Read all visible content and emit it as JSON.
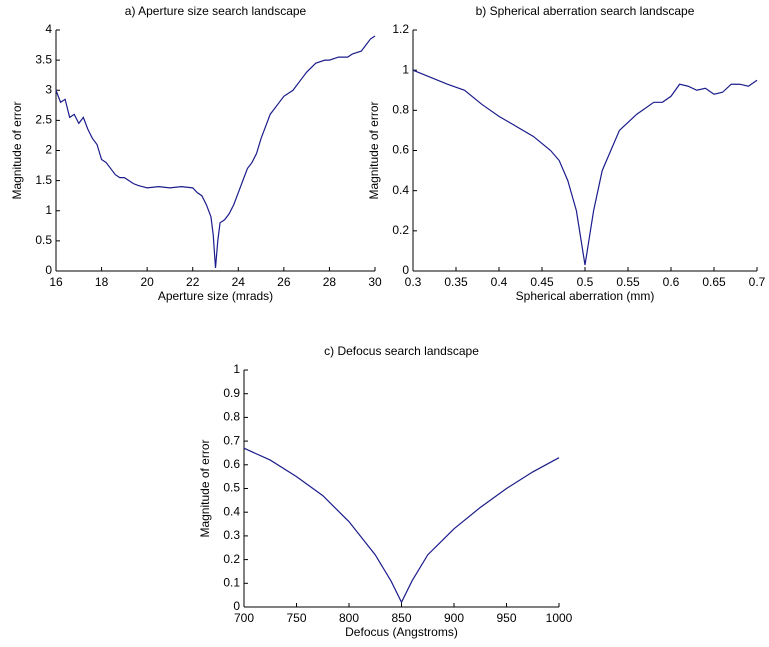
{
  "chart_data": [
    {
      "type": "line",
      "title": "a) Aperture size search landscape",
      "xlabel": "Aperture size (mrads)",
      "ylabel": "Magnitude of error",
      "color": "#1c1c8c",
      "x": [
        16,
        16.2,
        16.4,
        16.6,
        16.8,
        17,
        17.2,
        17.4,
        17.6,
        17.8,
        18,
        18.2,
        18.4,
        18.6,
        18.8,
        19,
        19.2,
        19.4,
        19.6,
        19.8,
        20,
        20.5,
        21,
        21.5,
        22,
        22.2,
        22.4,
        22.6,
        22.8,
        22.9,
        23,
        23.1,
        23.2,
        23.4,
        23.6,
        23.8,
        24,
        24.2,
        24.4,
        24.6,
        24.8,
        25,
        25.4,
        25.8,
        26,
        26.4,
        26.8,
        27,
        27.4,
        27.8,
        28,
        28.4,
        28.8,
        29,
        29.4,
        29.8,
        30
      ],
      "values": [
        3.0,
        2.8,
        2.85,
        2.55,
        2.6,
        2.45,
        2.55,
        2.35,
        2.2,
        2.1,
        1.85,
        1.8,
        1.7,
        1.6,
        1.55,
        1.55,
        1.5,
        1.45,
        1.42,
        1.4,
        1.38,
        1.4,
        1.38,
        1.4,
        1.38,
        1.3,
        1.25,
        1.1,
        0.9,
        0.6,
        0.05,
        0.5,
        0.8,
        0.85,
        0.95,
        1.1,
        1.3,
        1.5,
        1.7,
        1.8,
        1.95,
        2.2,
        2.6,
        2.8,
        2.9,
        3.0,
        3.2,
        3.3,
        3.45,
        3.5,
        3.5,
        3.55,
        3.55,
        3.6,
        3.65,
        3.85,
        3.9
      ],
      "xlim": [
        16,
        30
      ],
      "xticks": [
        16,
        18,
        20,
        22,
        24,
        26,
        28,
        30
      ],
      "ylim": [
        0,
        4
      ],
      "yticks": [
        0,
        0.5,
        1,
        1.5,
        2,
        2.5,
        3,
        3.5,
        4
      ]
    },
    {
      "type": "line",
      "title": "b) Spherical aberration search landscape",
      "xlabel": "Spherical aberration (mm)",
      "ylabel": "Magnitude of error",
      "color": "#1c1c8c",
      "x": [
        0.3,
        0.34,
        0.36,
        0.38,
        0.4,
        0.42,
        0.44,
        0.46,
        0.47,
        0.48,
        0.49,
        0.5,
        0.51,
        0.52,
        0.53,
        0.54,
        0.56,
        0.58,
        0.59,
        0.6,
        0.61,
        0.62,
        0.63,
        0.64,
        0.65,
        0.66,
        0.67,
        0.68,
        0.69,
        0.7
      ],
      "values": [
        1.0,
        0.93,
        0.9,
        0.83,
        0.77,
        0.72,
        0.67,
        0.6,
        0.55,
        0.45,
        0.3,
        0.03,
        0.3,
        0.5,
        0.6,
        0.7,
        0.78,
        0.84,
        0.84,
        0.87,
        0.93,
        0.92,
        0.9,
        0.91,
        0.88,
        0.89,
        0.93,
        0.93,
        0.92,
        0.95
      ],
      "xlim": [
        0.3,
        0.7
      ],
      "xticks": [
        0.3,
        0.35,
        0.4,
        0.45,
        0.5,
        0.55,
        0.6,
        0.65,
        0.7
      ],
      "ylim": [
        0,
        1.2
      ],
      "yticks": [
        0,
        0.2,
        0.4,
        0.6,
        0.8,
        1,
        1.2
      ]
    },
    {
      "type": "line",
      "title": "c) Defocus search landscape",
      "xlabel": "Defocus (Angstroms)",
      "ylabel": "Magnitude of error",
      "color": "#1c1c8c",
      "x": [
        700,
        725,
        750,
        775,
        800,
        825,
        840,
        850,
        860,
        875,
        900,
        925,
        950,
        975,
        1000
      ],
      "values": [
        0.67,
        0.62,
        0.55,
        0.47,
        0.36,
        0.22,
        0.11,
        0.02,
        0.11,
        0.22,
        0.33,
        0.42,
        0.5,
        0.57,
        0.63
      ],
      "xlim": [
        700,
        1000
      ],
      "xticks": [
        700,
        750,
        800,
        850,
        900,
        950,
        1000
      ],
      "ylim": [
        0,
        1
      ],
      "yticks": [
        0,
        0.1,
        0.2,
        0.3,
        0.4,
        0.5,
        0.6,
        0.7,
        0.8,
        0.9,
        1
      ]
    }
  ]
}
